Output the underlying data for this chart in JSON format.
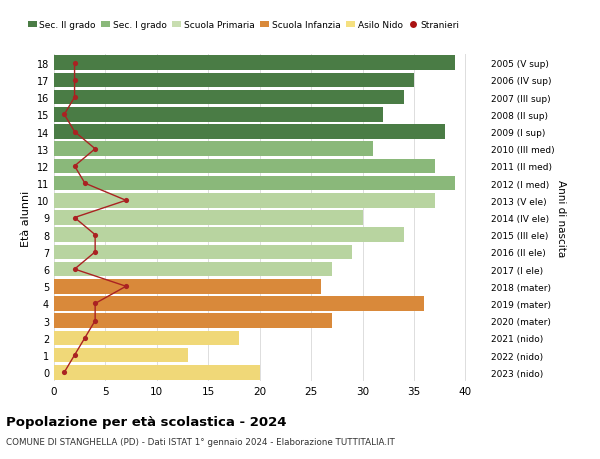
{
  "ages": [
    18,
    17,
    16,
    15,
    14,
    13,
    12,
    11,
    10,
    9,
    8,
    7,
    6,
    5,
    4,
    3,
    2,
    1,
    0
  ],
  "bar_values": [
    39,
    35,
    34,
    32,
    38,
    31,
    37,
    39,
    37,
    30,
    34,
    29,
    27,
    26,
    36,
    27,
    18,
    13,
    20
  ],
  "bar_colors": [
    "#4a7c45",
    "#4a7c45",
    "#4a7c45",
    "#4a7c45",
    "#4a7c45",
    "#8ab87a",
    "#8ab87a",
    "#8ab87a",
    "#b8d4a0",
    "#b8d4a0",
    "#b8d4a0",
    "#b8d4a0",
    "#b8d4a0",
    "#d9893a",
    "#d9893a",
    "#d9893a",
    "#f0d878",
    "#f0d878",
    "#f0d878"
  ],
  "stranieri": [
    2,
    2,
    2,
    1,
    2,
    4,
    2,
    3,
    7,
    2,
    4,
    4,
    2,
    7,
    4,
    4,
    3,
    2,
    1
  ],
  "right_labels_by_age": {
    "18": "2005 (V sup)",
    "17": "2006 (IV sup)",
    "16": "2007 (III sup)",
    "15": "2008 (II sup)",
    "14": "2009 (I sup)",
    "13": "2010 (III med)",
    "12": "2011 (II med)",
    "11": "2012 (I med)",
    "10": "2013 (V ele)",
    "9": "2014 (IV ele)",
    "8": "2015 (III ele)",
    "7": "2016 (II ele)",
    "6": "2017 (I ele)",
    "5": "2018 (mater)",
    "4": "2019 (mater)",
    "3": "2020 (mater)",
    "2": "2021 (nido)",
    "1": "2022 (nido)",
    "0": "2023 (nido)"
  },
  "legend_labels": [
    "Sec. II grado",
    "Sec. I grado",
    "Scuola Primaria",
    "Scuola Infanzia",
    "Asilo Nido",
    "Stranieri"
  ],
  "legend_colors": [
    "#4a7c45",
    "#8ab87a",
    "#c8ddb0",
    "#d9893a",
    "#f5e080",
    "#aa1111"
  ],
  "ylabel": "Età alunni",
  "right_ylabel": "Anni di nascita",
  "title": "Popolazione per età scolastica - 2024",
  "subtitle": "COMUNE DI STANGHELLA (PD) - Dati ISTAT 1° gennaio 2024 - Elaborazione TUTTITALIA.IT",
  "xlim": [
    0,
    42
  ],
  "bar_height": 0.85,
  "bg_color": "#ffffff",
  "grid_color": "#dddddd",
  "line_color": "#aa2222"
}
